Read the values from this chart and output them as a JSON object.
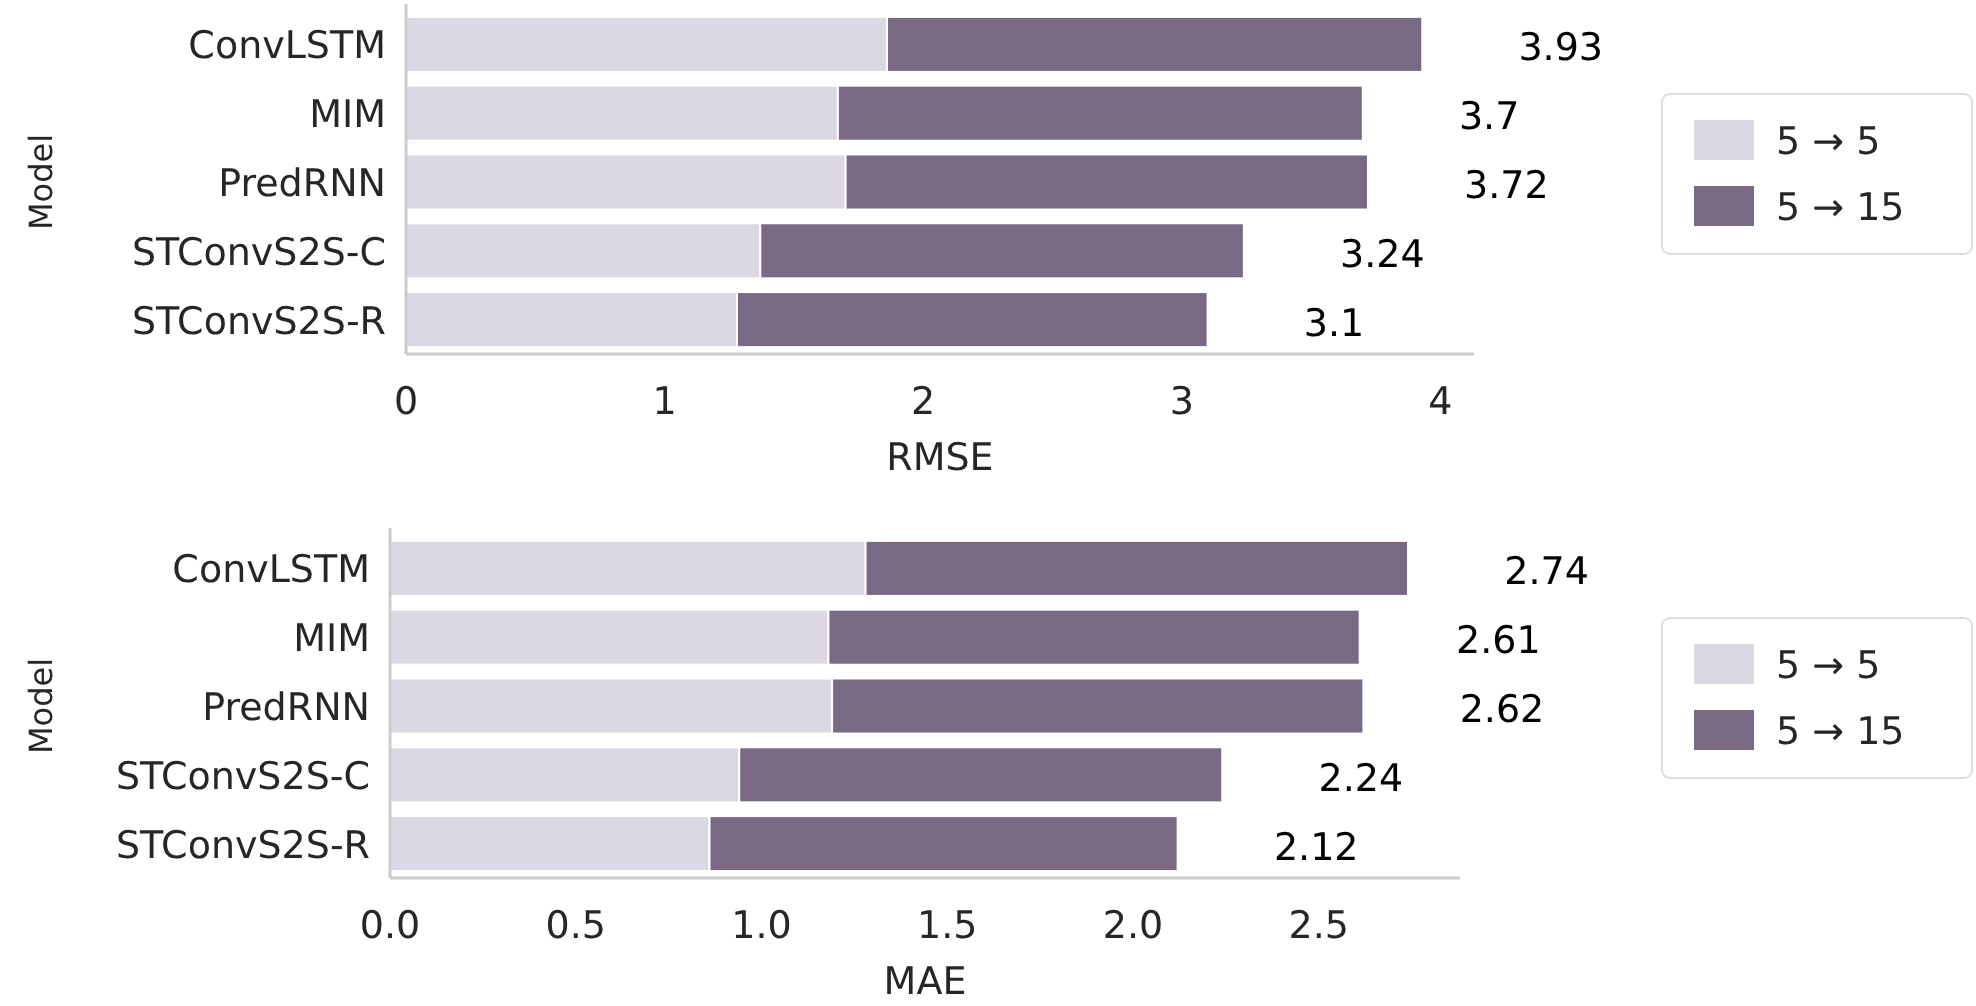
{
  "chart_data": [
    {
      "type": "bar",
      "orientation": "horizontal",
      "stacked": true,
      "categories": [
        "ConvLSTM",
        "MIM",
        "PredRNN",
        "STConvS2S-C",
        "STConvS2S-R"
      ],
      "series": [
        {
          "name": "5 → 5",
          "color": "#dcd8e3",
          "values": [
            1.86,
            1.67,
            1.7,
            1.37,
            1.28
          ]
        },
        {
          "name": "5 → 15",
          "color": "#786a85",
          "values": [
            2.07,
            2.03,
            2.02,
            1.87,
            1.82
          ]
        }
      ],
      "totals": [
        "3.93",
        "3.7",
        "3.72",
        "3.24",
        "3.1"
      ],
      "xlim": [
        0,
        4.13
      ],
      "xticks": [
        0,
        1,
        2,
        3,
        4
      ],
      "xlabel": "RMSE",
      "ylabel": "Model",
      "legend": "right",
      "grid": false
    },
    {
      "type": "bar",
      "orientation": "horizontal",
      "stacked": true,
      "categories": [
        "ConvLSTM",
        "MIM",
        "PredRNN",
        "STConvS2S-C",
        "STConvS2S-R"
      ],
      "series": [
        {
          "name": "5 → 5",
          "color": "#dcd8e3",
          "values": [
            1.28,
            1.18,
            1.19,
            0.94,
            0.86
          ]
        },
        {
          "name": "5 → 15",
          "color": "#786a85",
          "values": [
            1.46,
            1.43,
            1.43,
            1.3,
            1.26
          ]
        }
      ],
      "totals": [
        "2.74",
        "2.61",
        "2.62",
        "2.24",
        "2.12"
      ],
      "xlim": [
        0,
        2.88
      ],
      "xticks": [
        {
          "value": 0,
          "label": "0.0"
        },
        {
          "value": 0.5,
          "label": "0.5"
        },
        {
          "value": 1,
          "label": "1.0"
        },
        {
          "value": 1.5,
          "label": "1.5"
        },
        {
          "value": 2,
          "label": "2.0"
        },
        {
          "value": 2.5,
          "label": "2.5"
        }
      ],
      "xlabel": "MAE",
      "ylabel": "Model",
      "legend": "right",
      "grid": false
    }
  ]
}
